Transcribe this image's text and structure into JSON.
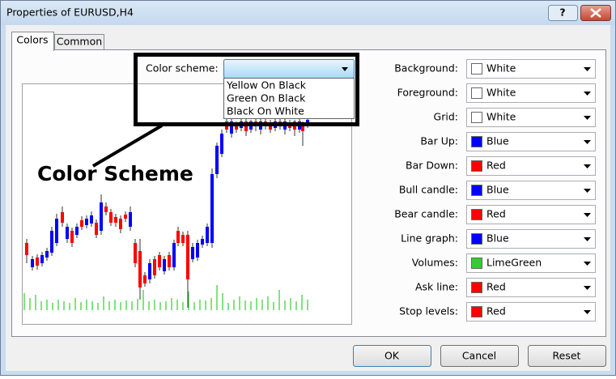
{
  "window": {
    "title": "Properties of EURUSD,H4",
    "tabs": [
      "Colors",
      "Common"
    ]
  },
  "color_scheme": {
    "label": "Color scheme:",
    "options": [
      "Yellow On Black",
      "Green On Black",
      "Black On White"
    ]
  },
  "annotation": "Color Scheme",
  "properties": [
    {
      "label": "Background:",
      "value": "White",
      "color": "#ffffff"
    },
    {
      "label": "Foreground:",
      "value": "White",
      "color": "#ffffff"
    },
    {
      "label": "Grid:",
      "value": "White",
      "color": "#ffffff"
    },
    {
      "label": "Bar Up:",
      "value": "Blue",
      "color": "#0000ff"
    },
    {
      "label": "Bar Down:",
      "value": "Red",
      "color": "#ff0000"
    },
    {
      "label": "Bull candle:",
      "value": "Blue",
      "color": "#0000ff"
    },
    {
      "label": "Bear candle:",
      "value": "Red",
      "color": "#ff0000"
    },
    {
      "label": "Line graph:",
      "value": "Blue",
      "color": "#0000ff"
    },
    {
      "label": "Volumes:",
      "value": "LimeGreen",
      "color": "#32cd32"
    },
    {
      "label": "Ask line:",
      "value": "Red",
      "color": "#ff0000"
    },
    {
      "label": "Stop levels:",
      "value": "Red",
      "color": "#ff0000"
    }
  ],
  "buttons": [
    "OK",
    "Cancel",
    "Reset"
  ]
}
